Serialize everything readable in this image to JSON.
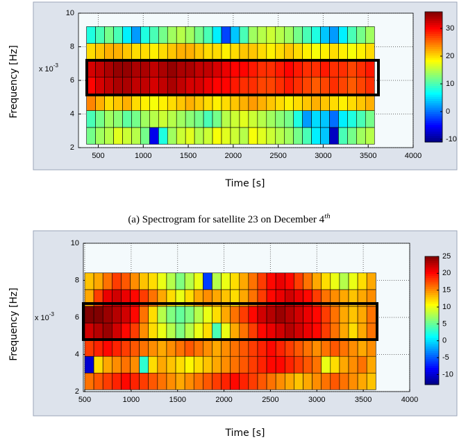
{
  "chart_data": [
    {
      "type": "heatmap",
      "y_label": "Frequency [Hz]",
      "x_label": "Time [s]",
      "y_scale_label": {
        "base": "x 10",
        "exponent": "-3"
      },
      "caption": "(a) Spectrogram for satellite 23 on December 4",
      "caption_superscript": "th",
      "xlim": [
        280,
        4000
      ],
      "ylim": [
        2,
        10
      ],
      "xticks": [
        500,
        1000,
        1500,
        2000,
        2500,
        3000,
        3500,
        4000
      ],
      "yticks": [
        2,
        4,
        6,
        8,
        10
      ],
      "grid": true,
      "x_bins": [
        370,
        470,
        570,
        670,
        770,
        870,
        970,
        1070,
        1170,
        1270,
        1370,
        1470,
        1570,
        1670,
        1770,
        1870,
        1970,
        2070,
        2170,
        2270,
        2370,
        2470,
        2570,
        2670,
        2770,
        2870,
        2970,
        3070,
        3170,
        3270,
        3370,
        3470,
        3570
      ],
      "y_bins": [
        2.2,
        3.2,
        4.2,
        5.2,
        6.2,
        7.2,
        8.2,
        9.2
      ],
      "z": [
        [
          12,
          14,
          15,
          17,
          16,
          15,
          12,
          -6,
          8,
          14,
          16,
          17,
          15,
          16,
          18,
          17,
          16,
          15,
          18,
          17,
          16,
          15,
          14,
          12,
          10,
          6,
          4,
          -8,
          10,
          12,
          14,
          15
        ],
        [
          10,
          12,
          14,
          13,
          11,
          12,
          14,
          15,
          16,
          15,
          14,
          13,
          12,
          10,
          12,
          15,
          16,
          17,
          16,
          15,
          14,
          13,
          12,
          8,
          2,
          5,
          4,
          0,
          6,
          8,
          10,
          12
        ],
        [
          24,
          22,
          20,
          21,
          22,
          20,
          19,
          18,
          19,
          20,
          21,
          22,
          21,
          20,
          19,
          20,
          21,
          22,
          23,
          22,
          21,
          20,
          19,
          20,
          21,
          22,
          21,
          20,
          19,
          20,
          21,
          22
        ],
        [
          30,
          32,
          33,
          34,
          34,
          33,
          33,
          32,
          33,
          34,
          33,
          32,
          32,
          31,
          30,
          30,
          29,
          28,
          28,
          27,
          27,
          28,
          29,
          28,
          27,
          26,
          27,
          28,
          27,
          26,
          27,
          28
        ],
        [
          32,
          33,
          34,
          35,
          35,
          34,
          34,
          33,
          34,
          35,
          34,
          34,
          33,
          33,
          32,
          31,
          30,
          30,
          29,
          28,
          28,
          29,
          30,
          29,
          28,
          28,
          29,
          28,
          28,
          27,
          28,
          29
        ],
        [
          20,
          21,
          22,
          22,
          21,
          20,
          20,
          19,
          20,
          21,
          22,
          22,
          21,
          20,
          20,
          19,
          20,
          21,
          21,
          20,
          19,
          20,
          21,
          20,
          19,
          18,
          19,
          20,
          19,
          18,
          19,
          20
        ],
        [
          8,
          10,
          12,
          10,
          6,
          2,
          8,
          10,
          12,
          14,
          15,
          14,
          12,
          10,
          6,
          -2,
          4,
          10,
          14,
          15,
          16,
          15,
          14,
          12,
          10,
          8,
          4,
          2,
          6,
          10,
          12,
          14
        ]
      ],
      "colormap": "jet",
      "clim": [
        -11,
        36
      ],
      "cticks": [
        -10,
        0,
        10,
        20,
        30
      ]
    },
    {
      "type": "heatmap",
      "y_label": "Frequency [Hz]",
      "x_label": "Time [s]",
      "y_scale_label": {
        "base": "x 10",
        "exponent": "-3"
      },
      "xlim": [
        485,
        4000
      ],
      "ylim": [
        2,
        10
      ],
      "xticks": [
        500,
        1000,
        1500,
        2000,
        2500,
        3000,
        3500,
        4000
      ],
      "yticks": [
        2,
        4,
        6,
        8,
        10
      ],
      "grid": true,
      "x_bins": [
        500,
        598,
        696,
        794,
        892,
        990,
        1088,
        1186,
        1284,
        1382,
        1480,
        1578,
        1676,
        1774,
        1872,
        1970,
        2068,
        2166,
        2264,
        2362,
        2460,
        2558,
        2656,
        2754,
        2852,
        2950,
        3048,
        3146,
        3244,
        3342,
        3440,
        3538,
        3636
      ],
      "y_bins": [
        2.1,
        3.0,
        3.9,
        4.8,
        5.7,
        6.6,
        7.5,
        8.4
      ],
      "z": [
        [
          16,
          17,
          18,
          19,
          20,
          19,
          18,
          17,
          16,
          15,
          14,
          15,
          16,
          17,
          18,
          19,
          20,
          19,
          18,
          17,
          16,
          15,
          14,
          13,
          14,
          15,
          16,
          17,
          16,
          15,
          14,
          13
        ],
        [
          -10,
          12,
          14,
          15,
          16,
          15,
          3,
          12,
          14,
          13,
          12,
          11,
          12,
          13,
          14,
          15,
          16,
          17,
          18,
          19,
          20,
          20,
          19,
          18,
          17,
          16,
          10,
          12,
          14,
          15,
          16,
          14
        ],
        [
          18,
          19,
          20,
          19,
          18,
          17,
          16,
          15,
          14,
          15,
          16,
          17,
          16,
          15,
          14,
          15,
          16,
          17,
          18,
          19,
          20,
          19,
          18,
          17,
          16,
          15,
          16,
          17,
          16,
          15,
          14,
          15
        ],
        [
          22,
          23,
          24,
          22,
          20,
          18,
          15,
          12,
          10,
          8,
          6,
          8,
          10,
          12,
          4,
          10,
          14,
          16,
          18,
          20,
          21,
          22,
          23,
          22,
          21,
          20,
          18,
          16,
          14,
          12,
          14,
          16
        ],
        [
          25,
          25,
          24,
          23,
          22,
          20,
          16,
          12,
          8,
          6,
          5,
          6,
          8,
          10,
          12,
          14,
          16,
          18,
          20,
          22,
          23,
          24,
          23,
          22,
          21,
          20,
          18,
          16,
          14,
          13,
          14,
          16
        ],
        [
          14,
          18,
          21,
          22,
          21,
          20,
          18,
          16,
          14,
          12,
          10,
          12,
          14,
          15,
          14,
          13,
          12,
          14,
          16,
          18,
          20,
          21,
          22,
          21,
          20,
          18,
          16,
          15,
          14,
          13,
          14,
          15
        ],
        [
          13,
          14,
          16,
          18,
          17,
          15,
          13,
          12,
          10,
          8,
          6,
          8,
          10,
          -6,
          8,
          10,
          12,
          14,
          16,
          18,
          20,
          21,
          20,
          18,
          16,
          14,
          12,
          10,
          8,
          10,
          12,
          14
        ]
      ],
      "colormap": "jet",
      "clim": [
        -13,
        25
      ],
      "cticks": [
        -10,
        -5,
        0,
        5,
        10,
        15,
        20,
        25
      ]
    }
  ]
}
